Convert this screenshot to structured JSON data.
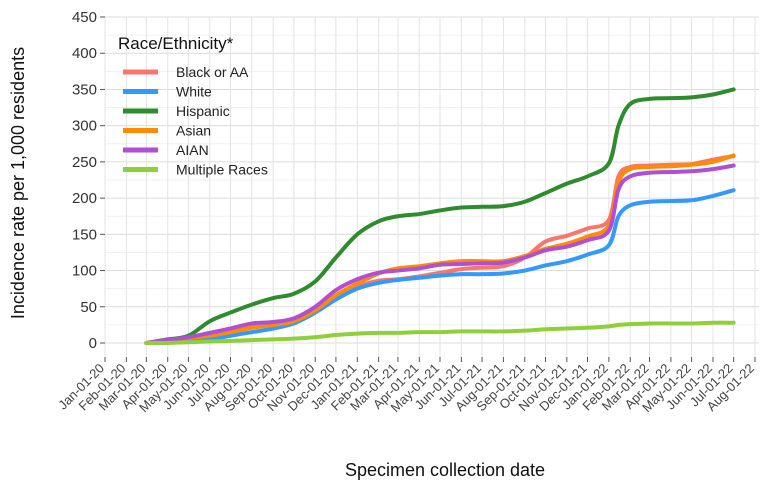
{
  "chart_data": {
    "type": "line",
    "xlabel": "Specimen collection date",
    "ylabel": "Incidence rate per 1,000 residents",
    "ylim": [
      0,
      450
    ],
    "y_ticks": [
      0,
      50,
      100,
      150,
      200,
      250,
      300,
      350,
      400,
      450
    ],
    "xlim": [
      "2020-01-01",
      "2022-08-01"
    ],
    "x_tick_labels": [
      "Jan-01-20",
      "Feb-01-20",
      "Mar-01-20",
      "Apr-01-20",
      "May-01-20",
      "Jun-01-20",
      "Jul-01-20",
      "Aug-01-20",
      "Sep-01-20",
      "Oct-01-20",
      "Nov-01-20",
      "Dec-01-20",
      "Jan-01-21",
      "Feb-01-21",
      "Mar-01-21",
      "Apr-01-21",
      "May-01-21",
      "Jun-01-21",
      "Jul-01-21",
      "Aug-01-21",
      "Sep-01-21",
      "Oct-01-21",
      "Nov-01-21",
      "Dec-01-21",
      "Jan-01-22",
      "Feb-01-22",
      "Mar-01-22",
      "Apr-01-22",
      "May-01-22",
      "Jun-01-22",
      "Jul-01-22",
      "Aug-01-22"
    ],
    "x_tick_dates": [
      "2020-01-01",
      "2020-02-01",
      "2020-03-01",
      "2020-04-01",
      "2020-05-01",
      "2020-06-01",
      "2020-07-01",
      "2020-08-01",
      "2020-09-01",
      "2020-10-01",
      "2020-11-01",
      "2020-12-01",
      "2021-01-01",
      "2021-02-01",
      "2021-03-01",
      "2021-04-01",
      "2021-05-01",
      "2021-06-01",
      "2021-07-01",
      "2021-08-01",
      "2021-09-01",
      "2021-10-01",
      "2021-11-01",
      "2021-12-01",
      "2022-01-01",
      "2022-02-01",
      "2022-03-01",
      "2022-04-01",
      "2022-05-01",
      "2022-06-01",
      "2022-07-01",
      "2022-08-01"
    ],
    "grid": true,
    "legend": {
      "title": "Race/Ethnicity*",
      "position": "top-left"
    },
    "series": [
      {
        "name": "Black or AA",
        "color": "#f8766d",
        "points": [
          [
            "2020-03-01",
            0
          ],
          [
            "2020-04-01",
            3
          ],
          [
            "2020-05-01",
            7
          ],
          [
            "2020-06-01",
            12
          ],
          [
            "2020-07-01",
            18
          ],
          [
            "2020-08-01",
            25
          ],
          [
            "2020-09-01",
            27
          ],
          [
            "2020-10-01",
            32
          ],
          [
            "2020-11-01",
            45
          ],
          [
            "2020-12-01",
            65
          ],
          [
            "2021-01-01",
            78
          ],
          [
            "2021-02-01",
            86
          ],
          [
            "2021-03-01",
            88
          ],
          [
            "2021-04-01",
            92
          ],
          [
            "2021-05-01",
            97
          ],
          [
            "2021-06-01",
            102
          ],
          [
            "2021-07-01",
            104
          ],
          [
            "2021-08-01",
            106
          ],
          [
            "2021-09-01",
            118
          ],
          [
            "2021-10-01",
            140
          ],
          [
            "2021-11-01",
            148
          ],
          [
            "2021-12-01",
            158
          ],
          [
            "2022-01-01",
            170
          ],
          [
            "2022-01-15",
            230
          ],
          [
            "2022-02-01",
            243
          ],
          [
            "2022-03-01",
            245
          ],
          [
            "2022-04-01",
            246
          ],
          [
            "2022-05-01",
            247
          ],
          [
            "2022-06-01",
            253
          ],
          [
            "2022-07-01",
            258
          ]
        ]
      },
      {
        "name": "White",
        "color": "#3399ff",
        "points": [
          [
            "2020-03-01",
            0
          ],
          [
            "2020-04-01",
            2
          ],
          [
            "2020-05-01",
            3
          ],
          [
            "2020-06-01",
            5
          ],
          [
            "2020-07-01",
            10
          ],
          [
            "2020-08-01",
            15
          ],
          [
            "2020-09-01",
            20
          ],
          [
            "2020-10-01",
            27
          ],
          [
            "2020-11-01",
            42
          ],
          [
            "2020-12-01",
            60
          ],
          [
            "2021-01-01",
            75
          ],
          [
            "2021-02-01",
            83
          ],
          [
            "2021-03-01",
            87
          ],
          [
            "2021-04-01",
            90
          ],
          [
            "2021-05-01",
            93
          ],
          [
            "2021-06-01",
            95
          ],
          [
            "2021-07-01",
            95
          ],
          [
            "2021-08-01",
            96
          ],
          [
            "2021-09-01",
            100
          ],
          [
            "2021-10-01",
            107
          ],
          [
            "2021-11-01",
            113
          ],
          [
            "2021-12-01",
            122
          ],
          [
            "2022-01-01",
            135
          ],
          [
            "2022-01-15",
            175
          ],
          [
            "2022-02-01",
            190
          ],
          [
            "2022-03-01",
            195
          ],
          [
            "2022-04-01",
            196
          ],
          [
            "2022-05-01",
            197
          ],
          [
            "2022-06-01",
            203
          ],
          [
            "2022-07-01",
            211
          ]
        ]
      },
      {
        "name": "Hispanic",
        "color": "#2e8b2e",
        "points": [
          [
            "2020-03-01",
            0
          ],
          [
            "2020-04-01",
            5
          ],
          [
            "2020-05-01",
            10
          ],
          [
            "2020-06-01",
            30
          ],
          [
            "2020-07-01",
            42
          ],
          [
            "2020-08-01",
            53
          ],
          [
            "2020-09-01",
            62
          ],
          [
            "2020-10-01",
            68
          ],
          [
            "2020-11-01",
            85
          ],
          [
            "2020-12-01",
            118
          ],
          [
            "2021-01-01",
            150
          ],
          [
            "2021-02-01",
            168
          ],
          [
            "2021-03-01",
            175
          ],
          [
            "2021-04-01",
            178
          ],
          [
            "2021-05-01",
            183
          ],
          [
            "2021-06-01",
            187
          ],
          [
            "2021-07-01",
            188
          ],
          [
            "2021-08-01",
            189
          ],
          [
            "2021-09-01",
            195
          ],
          [
            "2021-10-01",
            207
          ],
          [
            "2021-11-01",
            220
          ],
          [
            "2021-12-01",
            230
          ],
          [
            "2022-01-01",
            248
          ],
          [
            "2022-01-15",
            300
          ],
          [
            "2022-02-01",
            330
          ],
          [
            "2022-03-01",
            337
          ],
          [
            "2022-04-01",
            338
          ],
          [
            "2022-05-01",
            339
          ],
          [
            "2022-06-01",
            343
          ],
          [
            "2022-07-01",
            350
          ]
        ]
      },
      {
        "name": "Asian",
        "color": "#ff8c00",
        "points": [
          [
            "2020-03-01",
            0
          ],
          [
            "2020-04-01",
            3
          ],
          [
            "2020-05-01",
            7
          ],
          [
            "2020-06-01",
            10
          ],
          [
            "2020-07-01",
            15
          ],
          [
            "2020-08-01",
            21
          ],
          [
            "2020-09-01",
            25
          ],
          [
            "2020-10-01",
            30
          ],
          [
            "2020-11-01",
            45
          ],
          [
            "2020-12-01",
            66
          ],
          [
            "2021-01-01",
            82
          ],
          [
            "2021-02-01",
            96
          ],
          [
            "2021-03-01",
            103
          ],
          [
            "2021-04-01",
            106
          ],
          [
            "2021-05-01",
            110
          ],
          [
            "2021-06-01",
            113
          ],
          [
            "2021-07-01",
            113
          ],
          [
            "2021-08-01",
            113
          ],
          [
            "2021-09-01",
            120
          ],
          [
            "2021-10-01",
            130
          ],
          [
            "2021-11-01",
            137
          ],
          [
            "2021-12-01",
            147
          ],
          [
            "2022-01-01",
            162
          ],
          [
            "2022-01-15",
            222
          ],
          [
            "2022-02-01",
            240
          ],
          [
            "2022-03-01",
            243
          ],
          [
            "2022-04-01",
            244
          ],
          [
            "2022-05-01",
            246
          ],
          [
            "2022-06-01",
            250
          ],
          [
            "2022-07-01",
            259
          ]
        ]
      },
      {
        "name": "AIAN",
        "color": "#b04fd3",
        "points": [
          [
            "2020-03-01",
            0
          ],
          [
            "2020-04-01",
            4
          ],
          [
            "2020-05-01",
            8
          ],
          [
            "2020-06-01",
            14
          ],
          [
            "2020-07-01",
            20
          ],
          [
            "2020-08-01",
            27
          ],
          [
            "2020-09-01",
            29
          ],
          [
            "2020-10-01",
            34
          ],
          [
            "2020-11-01",
            50
          ],
          [
            "2020-12-01",
            73
          ],
          [
            "2021-01-01",
            88
          ],
          [
            "2021-02-01",
            97
          ],
          [
            "2021-03-01",
            100
          ],
          [
            "2021-04-01",
            103
          ],
          [
            "2021-05-01",
            108
          ],
          [
            "2021-06-01",
            109
          ],
          [
            "2021-07-01",
            110
          ],
          [
            "2021-08-01",
            111
          ],
          [
            "2021-09-01",
            118
          ],
          [
            "2021-10-01",
            128
          ],
          [
            "2021-11-01",
            133
          ],
          [
            "2021-12-01",
            142
          ],
          [
            "2022-01-01",
            155
          ],
          [
            "2022-01-15",
            212
          ],
          [
            "2022-02-01",
            230
          ],
          [
            "2022-03-01",
            235
          ],
          [
            "2022-04-01",
            236
          ],
          [
            "2022-05-01",
            237
          ],
          [
            "2022-06-01",
            240
          ],
          [
            "2022-07-01",
            245
          ]
        ]
      },
      {
        "name": "Multiple Races",
        "color": "#8fd03a",
        "points": [
          [
            "2020-03-01",
            0
          ],
          [
            "2020-04-01",
            0
          ],
          [
            "2020-05-01",
            1
          ],
          [
            "2020-06-01",
            2
          ],
          [
            "2020-07-01",
            3
          ],
          [
            "2020-08-01",
            4
          ],
          [
            "2020-09-01",
            5
          ],
          [
            "2020-10-01",
            6
          ],
          [
            "2020-11-01",
            8
          ],
          [
            "2020-12-01",
            11
          ],
          [
            "2021-01-01",
            13
          ],
          [
            "2021-02-01",
            14
          ],
          [
            "2021-03-01",
            14
          ],
          [
            "2021-04-01",
            15
          ],
          [
            "2021-05-01",
            15
          ],
          [
            "2021-06-01",
            16
          ],
          [
            "2021-07-01",
            16
          ],
          [
            "2021-08-01",
            16
          ],
          [
            "2021-09-01",
            17
          ],
          [
            "2021-10-01",
            19
          ],
          [
            "2021-11-01",
            20
          ],
          [
            "2021-12-01",
            21
          ],
          [
            "2022-01-01",
            23
          ],
          [
            "2022-01-15",
            25
          ],
          [
            "2022-02-01",
            26
          ],
          [
            "2022-03-01",
            27
          ],
          [
            "2022-04-01",
            27
          ],
          [
            "2022-05-01",
            27
          ],
          [
            "2022-06-01",
            28
          ],
          [
            "2022-07-01",
            28
          ]
        ]
      }
    ]
  }
}
